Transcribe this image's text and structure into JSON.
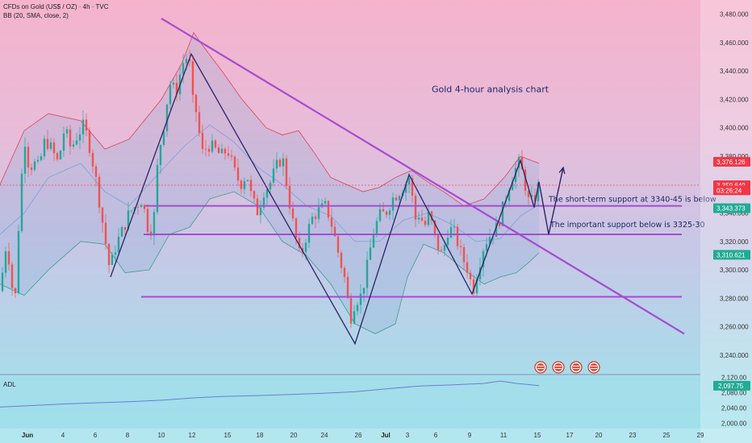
{
  "header": {
    "symbol_line": "CFDs on Gold (US$ / OZ) · 4h · TVC",
    "indicator_line": "BB (20, SMA, close, 2)"
  },
  "adl_label": "ADL",
  "colors": {
    "up": "#26a69a",
    "down": "#ef5350",
    "trendline": "#a64bd1",
    "bb_upper": "#e0405a",
    "bb_basis": "#7aa0d8",
    "bb_lower": "#3f9e8c",
    "adl_line": "#6a7fd6",
    "price_tag_red": "#f23645",
    "price_tag_teal": "#22ab94"
  },
  "chart_data": {
    "type": "candlestick",
    "title": "Gold 4-hour analysis chart",
    "x_tick_labels": [
      "Jun",
      "4",
      "6",
      "8",
      "10",
      "12",
      "15",
      "18",
      "20",
      "24",
      "26",
      "Jul",
      "3",
      "6",
      "9",
      "11",
      "15",
      "17",
      "20",
      "23",
      "25",
      "29"
    ],
    "y_ticks": [
      3240,
      3260,
      3280,
      3300,
      3320,
      3340,
      3360,
      3380,
      3400,
      3420,
      3440,
      3460,
      3480
    ],
    "y_tick_labels": [
      "3,240.000",
      "3,260.000",
      "3,280.000",
      "3,300.000",
      "3,320.000",
      "3,340.000",
      "3,360.000",
      "3,380.000",
      "3,400.000",
      "3,420.000",
      "3,440.000",
      "3,460.000",
      "3,480.000"
    ],
    "ylim": [
      3228,
      3490
    ],
    "price_tags": [
      {
        "label": "3,376.126",
        "value": 3376.1,
        "color": "red"
      },
      {
        "label": "3,359.640",
        "value": 3359.6,
        "color": "red"
      },
      {
        "label": "03:26:24",
        "value": 3356.0,
        "color": "red"
      },
      {
        "label": "3,343.373",
        "value": 3343.4,
        "color": "teal"
      },
      {
        "label": "3,310.621",
        "value": 3310.6,
        "color": "teal"
      }
    ],
    "price_path": [
      {
        "x": 0,
        "y": 3285
      },
      {
        "x": 8,
        "y": 3320
      },
      {
        "x": 13,
        "y": 3300
      },
      {
        "x": 18,
        "y": 3270
      },
      {
        "x": 23,
        "y": 3330
      },
      {
        "x": 30,
        "y": 3395
      },
      {
        "x": 36,
        "y": 3372
      },
      {
        "x": 42,
        "y": 3375
      },
      {
        "x": 48,
        "y": 3372
      },
      {
        "x": 56,
        "y": 3392
      },
      {
        "x": 64,
        "y": 3385
      },
      {
        "x": 72,
        "y": 3375
      },
      {
        "x": 80,
        "y": 3400
      },
      {
        "x": 88,
        "y": 3385
      },
      {
        "x": 96,
        "y": 3395
      },
      {
        "x": 104,
        "y": 3402
      },
      {
        "x": 112,
        "y": 3385
      },
      {
        "x": 120,
        "y": 3360
      },
      {
        "x": 128,
        "y": 3330
      },
      {
        "x": 136,
        "y": 3300
      },
      {
        "x": 144,
        "y": 3318
      },
      {
        "x": 152,
        "y": 3328
      },
      {
        "x": 160,
        "y": 3340
      },
      {
        "x": 168,
        "y": 3345
      },
      {
        "x": 176,
        "y": 3350
      },
      {
        "x": 184,
        "y": 3328
      },
      {
        "x": 190,
        "y": 3330
      },
      {
        "x": 196,
        "y": 3380
      },
      {
        "x": 204,
        "y": 3405
      },
      {
        "x": 210,
        "y": 3432
      },
      {
        "x": 218,
        "y": 3425
      },
      {
        "x": 226,
        "y": 3445
      },
      {
        "x": 234,
        "y": 3452
      },
      {
        "x": 238,
        "y": 3420
      },
      {
        "x": 244,
        "y": 3410
      },
      {
        "x": 250,
        "y": 3382
      },
      {
        "x": 258,
        "y": 3388
      },
      {
        "x": 266,
        "y": 3385
      },
      {
        "x": 274,
        "y": 3380
      },
      {
        "x": 282,
        "y": 3385
      },
      {
        "x": 290,
        "y": 3370
      },
      {
        "x": 298,
        "y": 3360
      },
      {
        "x": 306,
        "y": 3368
      },
      {
        "x": 312,
        "y": 3350
      },
      {
        "x": 320,
        "y": 3340
      },
      {
        "x": 326,
        "y": 3355
      },
      {
        "x": 334,
        "y": 3360
      },
      {
        "x": 342,
        "y": 3372
      },
      {
        "x": 350,
        "y": 3380
      },
      {
        "x": 358,
        "y": 3350
      },
      {
        "x": 364,
        "y": 3330
      },
      {
        "x": 372,
        "y": 3308
      },
      {
        "x": 380,
        "y": 3325
      },
      {
        "x": 388,
        "y": 3338
      },
      {
        "x": 396,
        "y": 3342
      },
      {
        "x": 404,
        "y": 3345
      },
      {
        "x": 412,
        "y": 3330
      },
      {
        "x": 420,
        "y": 3310
      },
      {
        "x": 428,
        "y": 3292
      },
      {
        "x": 434,
        "y": 3265
      },
      {
        "x": 440,
        "y": 3278
      },
      {
        "x": 448,
        "y": 3282
      },
      {
        "x": 456,
        "y": 3305
      },
      {
        "x": 462,
        "y": 3325
      },
      {
        "x": 470,
        "y": 3338
      },
      {
        "x": 478,
        "y": 3340
      },
      {
        "x": 486,
        "y": 3350
      },
      {
        "x": 494,
        "y": 3355
      },
      {
        "x": 502,
        "y": 3360
      },
      {
        "x": 508,
        "y": 3366
      },
      {
        "x": 514,
        "y": 3335
      },
      {
        "x": 520,
        "y": 3340
      },
      {
        "x": 526,
        "y": 3330
      },
      {
        "x": 532,
        "y": 3340
      },
      {
        "x": 540,
        "y": 3320
      },
      {
        "x": 548,
        "y": 3310
      },
      {
        "x": 556,
        "y": 3330
      },
      {
        "x": 564,
        "y": 3325
      },
      {
        "x": 572,
        "y": 3310
      },
      {
        "x": 580,
        "y": 3300
      },
      {
        "x": 586,
        "y": 3285
      },
      {
        "x": 592,
        "y": 3300
      },
      {
        "x": 600,
        "y": 3318
      },
      {
        "x": 608,
        "y": 3325
      },
      {
        "x": 616,
        "y": 3330
      },
      {
        "x": 624,
        "y": 3345
      },
      {
        "x": 632,
        "y": 3362
      },
      {
        "x": 638,
        "y": 3370
      },
      {
        "x": 644,
        "y": 3376
      },
      {
        "x": 650,
        "y": 3362
      },
      {
        "x": 656,
        "y": 3346
      },
      {
        "x": 662,
        "y": 3350
      },
      {
        "x": 668,
        "y": 3360
      }
    ],
    "bollinger": {
      "upper": [
        {
          "x": 0,
          "y": 3360
        },
        {
          "x": 30,
          "y": 3398
        },
        {
          "x": 60,
          "y": 3410
        },
        {
          "x": 100,
          "y": 3405
        },
        {
          "x": 130,
          "y": 3385
        },
        {
          "x": 160,
          "y": 3392
        },
        {
          "x": 200,
          "y": 3420
        },
        {
          "x": 225,
          "y": 3445
        },
        {
          "x": 240,
          "y": 3467
        },
        {
          "x": 255,
          "y": 3455
        },
        {
          "x": 275,
          "y": 3440
        },
        {
          "x": 300,
          "y": 3420
        },
        {
          "x": 330,
          "y": 3400
        },
        {
          "x": 350,
          "y": 3395
        },
        {
          "x": 370,
          "y": 3398
        },
        {
          "x": 390,
          "y": 3382
        },
        {
          "x": 410,
          "y": 3365
        },
        {
          "x": 430,
          "y": 3360
        },
        {
          "x": 450,
          "y": 3355
        },
        {
          "x": 470,
          "y": 3358
        },
        {
          "x": 490,
          "y": 3365
        },
        {
          "x": 510,
          "y": 3370
        },
        {
          "x": 530,
          "y": 3362
        },
        {
          "x": 550,
          "y": 3355
        },
        {
          "x": 575,
          "y": 3345
        },
        {
          "x": 600,
          "y": 3350
        },
        {
          "x": 625,
          "y": 3365
        },
        {
          "x": 645,
          "y": 3380
        },
        {
          "x": 668,
          "y": 3375
        }
      ],
      "basis": [
        {
          "x": 0,
          "y": 3325
        },
        {
          "x": 30,
          "y": 3340
        },
        {
          "x": 60,
          "y": 3365
        },
        {
          "x": 100,
          "y": 3375
        },
        {
          "x": 130,
          "y": 3355
        },
        {
          "x": 160,
          "y": 3345
        },
        {
          "x": 200,
          "y": 3370
        },
        {
          "x": 230,
          "y": 3388
        },
        {
          "x": 260,
          "y": 3402
        },
        {
          "x": 290,
          "y": 3390
        },
        {
          "x": 320,
          "y": 3372
        },
        {
          "x": 350,
          "y": 3360
        },
        {
          "x": 380,
          "y": 3345
        },
        {
          "x": 410,
          "y": 3338
        },
        {
          "x": 440,
          "y": 3320
        },
        {
          "x": 470,
          "y": 3320
        },
        {
          "x": 500,
          "y": 3335
        },
        {
          "x": 530,
          "y": 3340
        },
        {
          "x": 560,
          "y": 3332
        },
        {
          "x": 590,
          "y": 3320
        },
        {
          "x": 620,
          "y": 3322
        },
        {
          "x": 645,
          "y": 3338
        },
        {
          "x": 668,
          "y": 3346
        }
      ],
      "lower": [
        {
          "x": 0,
          "y": 3290
        },
        {
          "x": 30,
          "y": 3282
        },
        {
          "x": 60,
          "y": 3300
        },
        {
          "x": 100,
          "y": 3320
        },
        {
          "x": 130,
          "y": 3318
        },
        {
          "x": 155,
          "y": 3298
        },
        {
          "x": 185,
          "y": 3300
        },
        {
          "x": 210,
          "y": 3325
        },
        {
          "x": 235,
          "y": 3330
        },
        {
          "x": 260,
          "y": 3350
        },
        {
          "x": 290,
          "y": 3355
        },
        {
          "x": 320,
          "y": 3345
        },
        {
          "x": 350,
          "y": 3320
        },
        {
          "x": 380,
          "y": 3310
        },
        {
          "x": 410,
          "y": 3290
        },
        {
          "x": 440,
          "y": 3262
        },
        {
          "x": 465,
          "y": 3255
        },
        {
          "x": 490,
          "y": 3262
        },
        {
          "x": 505,
          "y": 3295
        },
        {
          "x": 525,
          "y": 3318
        },
        {
          "x": 550,
          "y": 3312
        },
        {
          "x": 575,
          "y": 3300
        },
        {
          "x": 600,
          "y": 3290
        },
        {
          "x": 620,
          "y": 3295
        },
        {
          "x": 640,
          "y": 3298
        },
        {
          "x": 655,
          "y": 3305
        },
        {
          "x": 668,
          "y": 3312
        }
      ]
    },
    "horizontal_levels": [
      {
        "x1": 180,
        "x2": 845,
        "y": 3345
      },
      {
        "x1": 178,
        "x2": 845,
        "y": 3325
      },
      {
        "x1": 175,
        "x2": 845,
        "y": 3281
      }
    ],
    "trendlines": [
      {
        "x1": 200,
        "y1": 3477,
        "x2": 848,
        "y2": 3255
      }
    ],
    "zigzag": [
      {
        "x": 137,
        "y": 3295
      },
      {
        "x": 237,
        "y": 3452
      },
      {
        "x": 440,
        "y": 3248
      },
      {
        "x": 507,
        "y": 3367
      },
      {
        "x": 585,
        "y": 3283
      },
      {
        "x": 645,
        "y": 3377
      },
      {
        "x": 662,
        "y": 3344
      }
    ],
    "projection": [
      {
        "x": 662,
        "y": 3344
      },
      {
        "x": 668,
        "y": 3362
      },
      {
        "x": 680,
        "y": 3325
      },
      {
        "x": 698,
        "y": 3372
      }
    ],
    "annotations": [
      {
        "text": "Gold 4-hour analysis chart",
        "x": 535,
        "y": 3425
      },
      {
        "text": "The short-term support at 3340-45 is below",
        "x": 680,
        "y": 3348
      },
      {
        "text": "The important support below is 3325-30",
        "x": 682,
        "y": 3330
      }
    ],
    "adl": {
      "y_tick_labels": [
        "2,120.00",
        "2,080.00",
        "2,040.00",
        "2,000.00"
      ],
      "y_ticks": [
        2120,
        2080,
        2040,
        2000
      ],
      "ylim": [
        1990,
        2125
      ],
      "current": {
        "label": "2,097.75",
        "value": 2097.75
      },
      "points": [
        {
          "x": 0,
          "y": 2042
        },
        {
          "x": 40,
          "y": 2046
        },
        {
          "x": 80,
          "y": 2050
        },
        {
          "x": 120,
          "y": 2053
        },
        {
          "x": 160,
          "y": 2056
        },
        {
          "x": 200,
          "y": 2060
        },
        {
          "x": 240,
          "y": 2066
        },
        {
          "x": 280,
          "y": 2070
        },
        {
          "x": 320,
          "y": 2072
        },
        {
          "x": 360,
          "y": 2075
        },
        {
          "x": 400,
          "y": 2078
        },
        {
          "x": 440,
          "y": 2082
        },
        {
          "x": 480,
          "y": 2090
        },
        {
          "x": 520,
          "y": 2097
        },
        {
          "x": 560,
          "y": 2100
        },
        {
          "x": 600,
          "y": 2104
        },
        {
          "x": 620,
          "y": 2110
        },
        {
          "x": 640,
          "y": 2104
        },
        {
          "x": 668,
          "y": 2098
        }
      ]
    },
    "event_icons": 4
  }
}
